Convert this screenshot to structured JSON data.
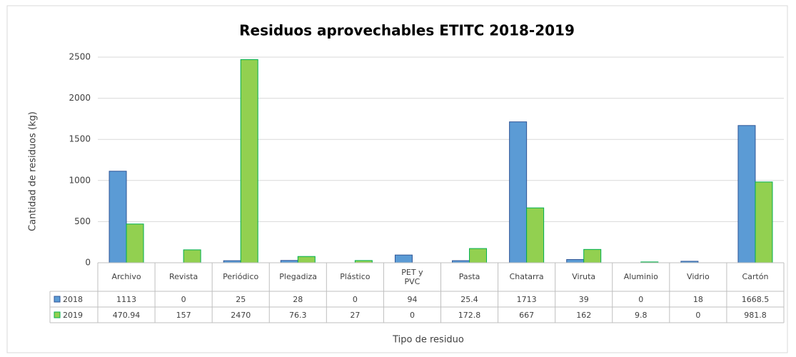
{
  "chart_data": {
    "type": "bar",
    "title": "Residuos aprovechables ETITC 2018-2019",
    "x_label": "Tipo de residuo",
    "y_label": "Cantidad de residuos (kg)",
    "categories": [
      "Archivo",
      "Revista",
      "Periódico",
      "Plegadiza",
      "Plástico",
      "PET y PVC",
      "Pasta",
      "Chatarra",
      "Viruta",
      "Aluminio",
      "Vidrio",
      "Cartón"
    ],
    "series": [
      {
        "name": "2018",
        "color": "#5b9bd5",
        "stroke": "#2f5597",
        "values": [
          1113,
          0,
          25,
          28,
          0,
          94,
          25.4,
          1713,
          39,
          0,
          18,
          1668.5
        ]
      },
      {
        "name": "2019",
        "color": "#92d050",
        "stroke": "#00b050",
        "values": [
          470.94,
          157,
          2470,
          76.3,
          27,
          0,
          172.8,
          667,
          162,
          9.8,
          0,
          981.8
        ]
      }
    ],
    "ylim": [
      0,
      2500
    ],
    "yticks": [
      0,
      500,
      1000,
      1500,
      2000,
      2500
    ],
    "grid": true,
    "data_table": true
  }
}
